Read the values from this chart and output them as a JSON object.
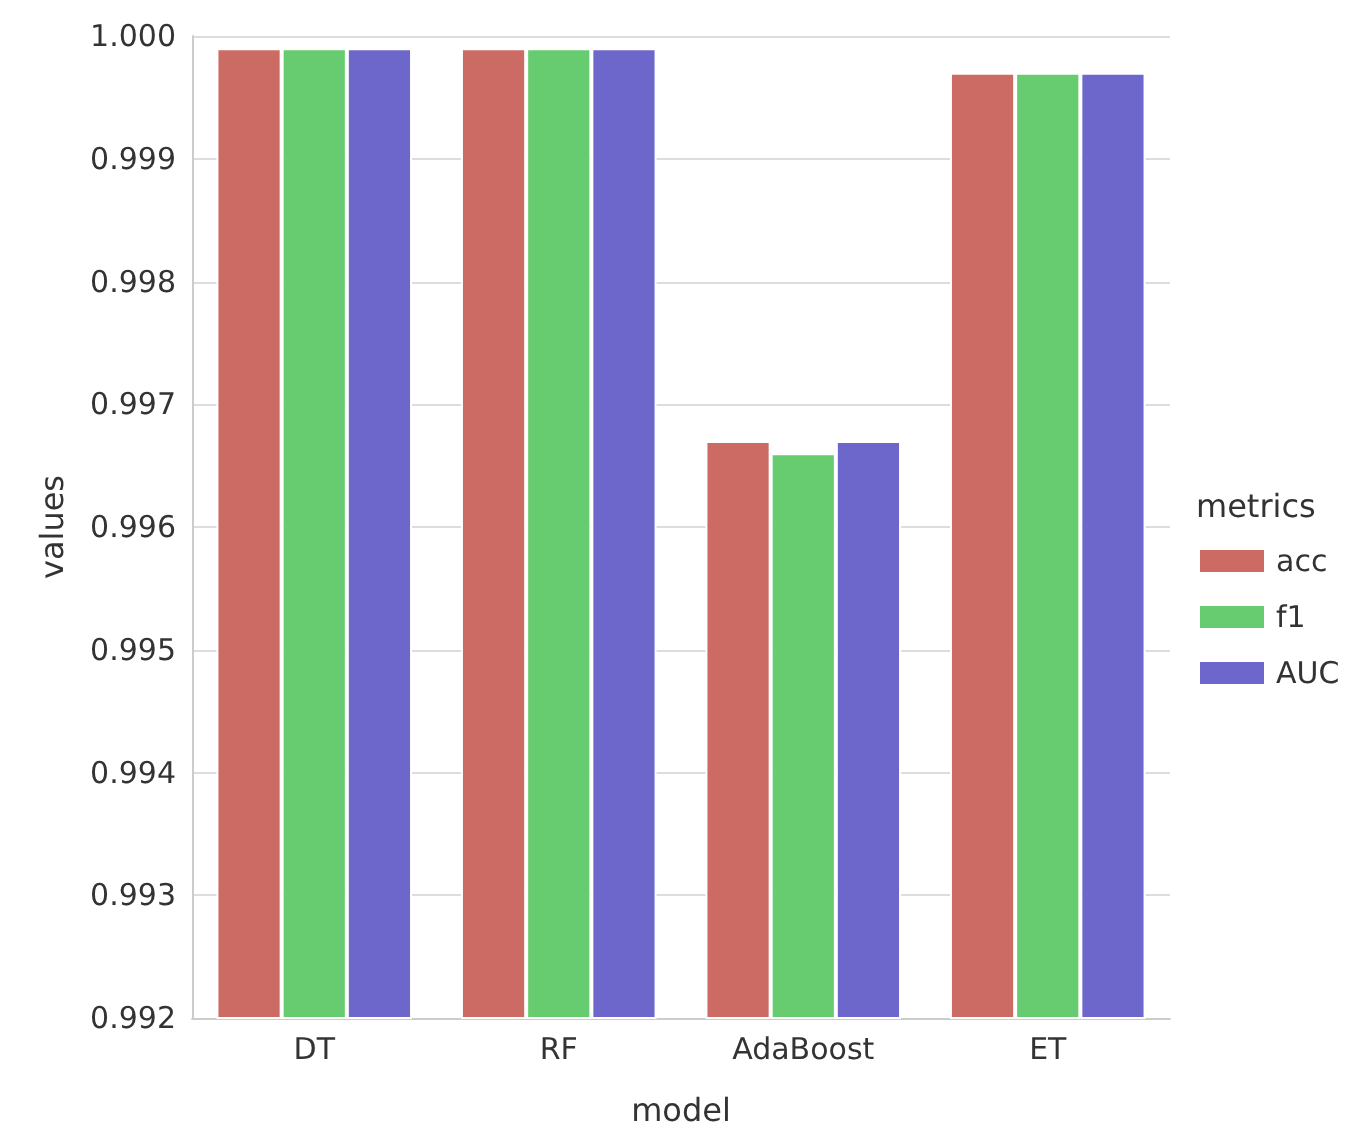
{
  "chart_data": {
    "type": "bar",
    "xlabel": "model",
    "ylabel": "values",
    "legend_title": "metrics",
    "categories": [
      "DT",
      "RF",
      "AdaBoost",
      "ET"
    ],
    "series": [
      {
        "name": "acc",
        "color": "#cc6b63",
        "values": [
          0.9999,
          0.9999,
          0.9967,
          0.9997
        ]
      },
      {
        "name": "f1",
        "color": "#67cb6f",
        "values": [
          0.9999,
          0.9999,
          0.9966,
          0.9997
        ]
      },
      {
        "name": "AUC",
        "color": "#6e67cb",
        "values": [
          0.9999,
          0.9999,
          0.9967,
          0.9997
        ]
      }
    ],
    "ylim": [
      0.992,
      1.0
    ],
    "yticks": [
      0.992,
      0.993,
      0.994,
      0.995,
      0.996,
      0.997,
      0.998,
      0.999,
      {
        "value": 1.0,
        "label": "1.000"
      }
    ],
    "grid": "y",
    "legend": "right"
  }
}
